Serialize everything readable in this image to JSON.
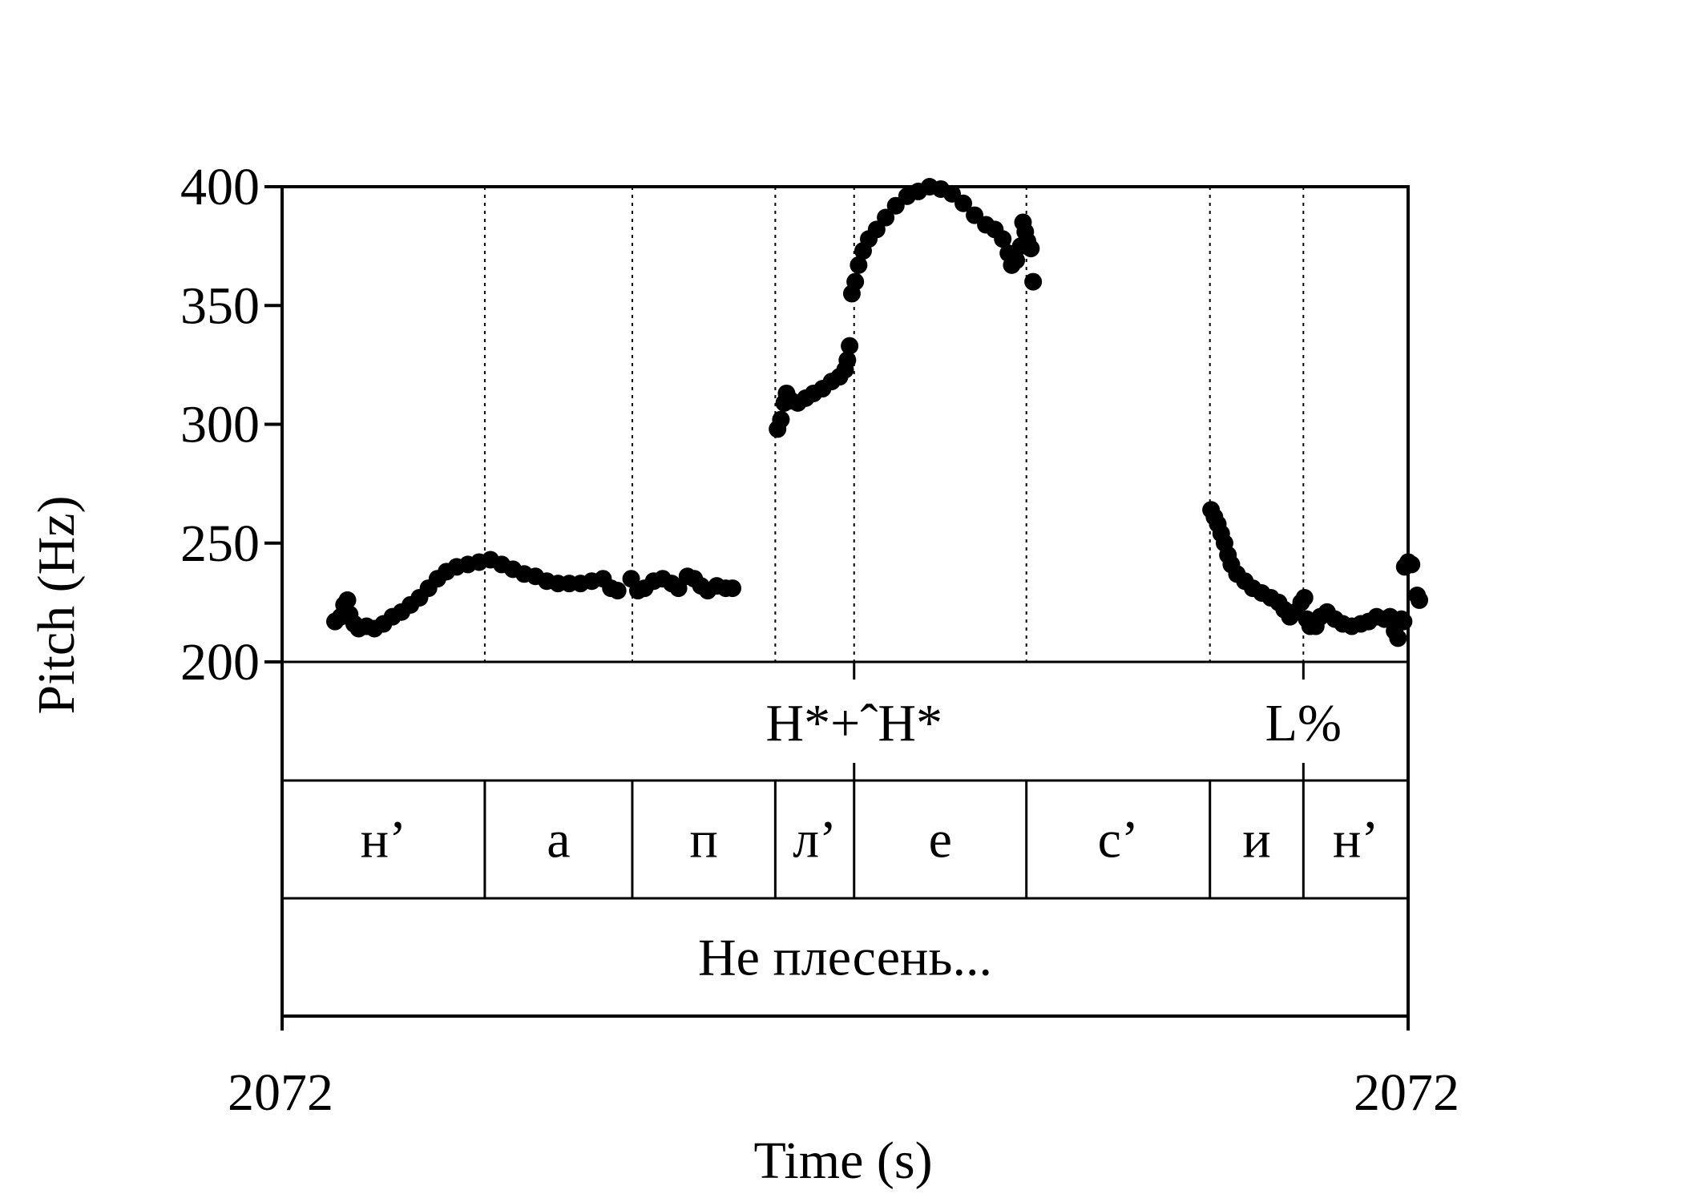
{
  "chart_data": {
    "type": "scatter",
    "title": "",
    "xlabel": "Time (s)",
    "ylabel": "Pitch (Hz)",
    "ylim": [
      200,
      400
    ],
    "xlim": [
      0,
      1
    ],
    "x_tick_labels": [
      "2072",
      "2072"
    ],
    "y_ticks": [
      200,
      250,
      300,
      350,
      400
    ],
    "y_tick_labels": [
      "200",
      "250",
      "300",
      "350",
      "400"
    ],
    "grid": "dotted vertical lines at segment boundaries",
    "segment_boundaries": [
      0.18,
      0.311,
      0.438,
      0.508,
      0.661,
      0.824,
      0.907
    ],
    "series": [
      {
        "points": [
          [
            0.047,
            217
          ],
          [
            0.052,
            219
          ],
          [
            0.055,
            224
          ],
          [
            0.058,
            226
          ],
          [
            0.06,
            220
          ],
          [
            0.064,
            216
          ],
          [
            0.068,
            214
          ],
          [
            0.075,
            215
          ],
          [
            0.082,
            214
          ],
          [
            0.09,
            216
          ],
          [
            0.098,
            219
          ],
          [
            0.106,
            221
          ],
          [
            0.114,
            224
          ],
          [
            0.122,
            227
          ],
          [
            0.13,
            231
          ],
          [
            0.138,
            235
          ],
          [
            0.146,
            238
          ],
          [
            0.155,
            240
          ],
          [
            0.165,
            241
          ],
          [
            0.175,
            242
          ],
          [
            0.185,
            243
          ],
          [
            0.195,
            241
          ],
          [
            0.205,
            239
          ],
          [
            0.215,
            237
          ],
          [
            0.225,
            236
          ],
          [
            0.235,
            234
          ],
          [
            0.245,
            233
          ],
          [
            0.255,
            233
          ],
          [
            0.265,
            233
          ],
          [
            0.275,
            234
          ],
          [
            0.285,
            235
          ],
          [
            0.292,
            231
          ],
          [
            0.298,
            230
          ],
          [
            0.31,
            235
          ],
          [
            0.316,
            230
          ],
          [
            0.322,
            231
          ],
          [
            0.33,
            234
          ],
          [
            0.338,
            235
          ],
          [
            0.346,
            233
          ],
          [
            0.352,
            231
          ],
          [
            0.36,
            236
          ],
          [
            0.366,
            235
          ],
          [
            0.372,
            232
          ],
          [
            0.378,
            230
          ],
          [
            0.386,
            232
          ],
          [
            0.394,
            231
          ],
          [
            0.4,
            231
          ]
        ]
      },
      {
        "points": [
          [
            0.44,
            298
          ],
          [
            0.443,
            302
          ],
          [
            0.446,
            309
          ],
          [
            0.448,
            313
          ],
          [
            0.452,
            310
          ],
          [
            0.458,
            309
          ],
          [
            0.465,
            311
          ],
          [
            0.472,
            313
          ],
          [
            0.48,
            315
          ],
          [
            0.488,
            318
          ],
          [
            0.495,
            320
          ],
          [
            0.5,
            323
          ],
          [
            0.502,
            327
          ],
          [
            0.504,
            333
          ],
          [
            0.506,
            355
          ],
          [
            0.509,
            360
          ],
          [
            0.512,
            367
          ],
          [
            0.516,
            373
          ],
          [
            0.521,
            378
          ],
          [
            0.528,
            382
          ],
          [
            0.536,
            387
          ],
          [
            0.545,
            392
          ],
          [
            0.555,
            396
          ],
          [
            0.565,
            398
          ],
          [
            0.575,
            400
          ],
          [
            0.585,
            399
          ],
          [
            0.595,
            397
          ],
          [
            0.605,
            393
          ],
          [
            0.615,
            388
          ],
          [
            0.625,
            384
          ],
          [
            0.633,
            382
          ],
          [
            0.64,
            378
          ],
          [
            0.645,
            372
          ],
          [
            0.648,
            367
          ],
          [
            0.652,
            369
          ],
          [
            0.656,
            375
          ],
          [
            0.658,
            385
          ],
          [
            0.66,
            381
          ],
          [
            0.662,
            377
          ],
          [
            0.665,
            374
          ],
          [
            0.667,
            360
          ]
        ]
      },
      {
        "points": [
          [
            0.825,
            264
          ],
          [
            0.828,
            261
          ],
          [
            0.831,
            258
          ],
          [
            0.834,
            254
          ],
          [
            0.837,
            250
          ],
          [
            0.84,
            245
          ],
          [
            0.843,
            241
          ],
          [
            0.848,
            237
          ],
          [
            0.855,
            234
          ],
          [
            0.862,
            231
          ],
          [
            0.87,
            229
          ],
          [
            0.878,
            227
          ],
          [
            0.885,
            225
          ],
          [
            0.89,
            222
          ],
          [
            0.895,
            219
          ],
          [
            0.9,
            221
          ],
          [
            0.905,
            225
          ],
          [
            0.908,
            227
          ],
          [
            0.91,
            218
          ],
          [
            0.913,
            215
          ],
          [
            0.918,
            215
          ],
          [
            0.922,
            219
          ],
          [
            0.928,
            221
          ],
          [
            0.935,
            218
          ],
          [
            0.942,
            216
          ],
          [
            0.95,
            215
          ],
          [
            0.958,
            216
          ],
          [
            0.965,
            217
          ],
          [
            0.972,
            219
          ],
          [
            0.979,
            218
          ],
          [
            0.984,
            219
          ],
          [
            0.988,
            213
          ],
          [
            0.991,
            210
          ],
          [
            0.994,
            218
          ],
          [
            0.996,
            217
          ],
          [
            0.997,
            240
          ],
          [
            1.0,
            242
          ],
          [
            1.003,
            241
          ],
          [
            1.008,
            228
          ],
          [
            1.01,
            226
          ]
        ]
      }
    ],
    "tiers": [
      {
        "name": "tones",
        "labels": [
          {
            "text": "H*+ˆH*",
            "x": 0.508
          },
          {
            "text": "L%",
            "x": 0.907
          }
        ]
      },
      {
        "name": "segments",
        "intervals": [
          {
            "text": "н’",
            "start": 0.0,
            "end": 0.18
          },
          {
            "text": "а",
            "start": 0.18,
            "end": 0.311
          },
          {
            "text": "п",
            "start": 0.311,
            "end": 0.438
          },
          {
            "text": "л’",
            "start": 0.438,
            "end": 0.508
          },
          {
            "text": "е",
            "start": 0.508,
            "end": 0.661
          },
          {
            "text": "с’",
            "start": 0.661,
            "end": 0.824
          },
          {
            "text": "и",
            "start": 0.824,
            "end": 0.907
          },
          {
            "text": "н’",
            "start": 0.907,
            "end": 1.0
          }
        ]
      },
      {
        "name": "words",
        "intervals": [
          {
            "text": "Не плесень...",
            "start": 0.0,
            "end": 1.0
          }
        ]
      }
    ]
  }
}
